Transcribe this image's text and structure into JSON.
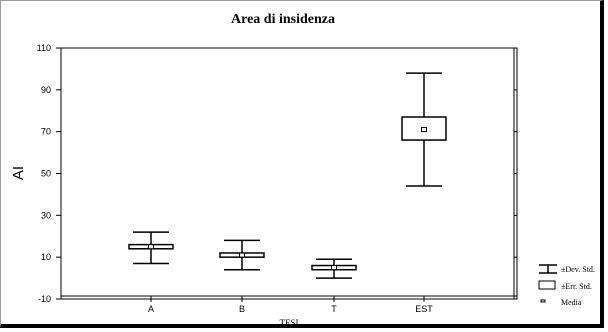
{
  "chart_data": {
    "type": "box",
    "title": "Area di insidenza",
    "xlabel": "TESI",
    "ylabel": "AI",
    "ylim": [
      -10,
      110
    ],
    "yticks": [
      -10,
      10,
      30,
      50,
      70,
      90,
      110
    ],
    "categories": [
      "A",
      "B",
      "T",
      "EST"
    ],
    "series": [
      {
        "category": "A",
        "mean": 15,
        "sd_low": 7,
        "sd_high": 22,
        "se_low": 14,
        "se_high": 16
      },
      {
        "category": "B",
        "mean": 11,
        "sd_low": 4,
        "sd_high": 18,
        "se_low": 10,
        "se_high": 12
      },
      {
        "category": "T",
        "mean": 5,
        "sd_low": 0,
        "sd_high": 9,
        "se_low": 4,
        "se_high": 6
      },
      {
        "category": "EST",
        "mean": 71,
        "sd_low": 44,
        "sd_high": 98,
        "se_low": 66,
        "se_high": 77
      }
    ],
    "legend": {
      "placement": "bottom-right",
      "items": [
        "±Dev. Std.",
        "±Err. Std.",
        "Media"
      ]
    },
    "grid": false
  }
}
